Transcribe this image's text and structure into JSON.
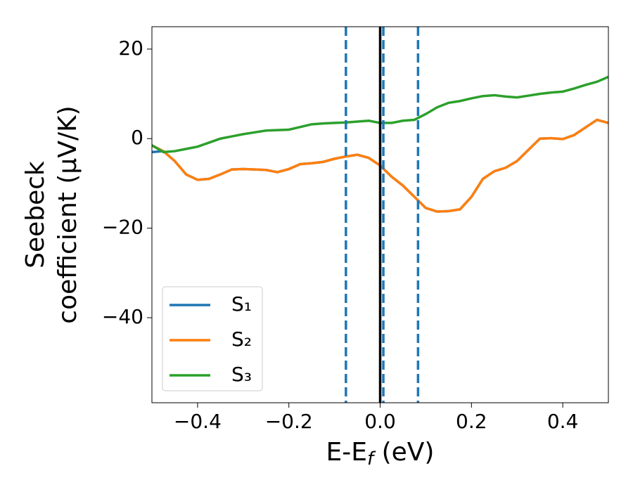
{
  "chart_data": {
    "type": "line",
    "xlabel": {
      "text": "E-E",
      "sub": "f",
      "rest": " (eV)"
    },
    "ylabel": [
      "Seebeck",
      "coefficient  (μV/K)"
    ],
    "xlim": [
      -0.5,
      0.5
    ],
    "ylim": [
      -59,
      25
    ],
    "xticks": [
      {
        "value": -0.4,
        "label": "−0.4"
      },
      {
        "value": -0.2,
        "label": "−0.2"
      },
      {
        "value": 0,
        "label": "0.0"
      },
      0.2,
      0.4
    ],
    "yticks": [
      {
        "value": -40,
        "label": "−40"
      },
      {
        "value": -20,
        "label": "−20"
      },
      0,
      20
    ],
    "legend": "lower left",
    "vlines": [
      {
        "x": -0.075,
        "color": "#1f77b4",
        "dashed": true
      },
      {
        "x": 0.007,
        "color": "#1f77b4",
        "dashed": true
      },
      {
        "x": 0.083,
        "color": "#1f77b4",
        "dashed": true
      },
      {
        "x": 0,
        "color": "#000000",
        "dashed": false
      }
    ],
    "x": [
      -0.5,
      -0.475,
      -0.45,
      -0.425,
      -0.4,
      -0.375,
      -0.35,
      -0.325,
      -0.3,
      -0.275,
      -0.25,
      -0.225,
      -0.2,
      -0.175,
      -0.15,
      -0.125,
      -0.1,
      -0.075,
      -0.05,
      -0.025,
      0,
      0.025,
      0.05,
      0.075,
      0.1,
      0.125,
      0.15,
      0.175,
      0.2,
      0.225,
      0.25,
      0.275,
      0.3,
      0.325,
      0.35,
      0.375,
      0.4,
      0.425,
      0.45,
      0.475,
      0.5
    ],
    "series": [
      {
        "name": "S₁",
        "color": "#1f77b4",
        "values": [
          -3,
          -2.8,
          -5,
          -8,
          -9.2,
          -9,
          -8,
          -6.9,
          -6.8,
          -6.9,
          -7,
          -7.5,
          -6.8,
          -5.7,
          -5.5,
          -5.2,
          -4.5,
          -4,
          -3.6,
          -4.3,
          -6,
          -8.5,
          -10.5,
          -13,
          -15.5,
          -16.3,
          -16.2,
          -15.8,
          -13,
          -9,
          -7.3,
          -6.5,
          -5,
          -2.5,
          0,
          0.1,
          -0.1,
          0.8,
          2.5,
          4.2,
          3.5
        ]
      },
      {
        "name": "S₂",
        "color": "#ff7f0e",
        "values": [
          -1.5,
          -2.8,
          -5,
          -8,
          -9.2,
          -9,
          -8,
          -6.9,
          -6.8,
          -6.9,
          -7,
          -7.5,
          -6.8,
          -5.7,
          -5.5,
          -5.2,
          -4.5,
          -4,
          -3.6,
          -4.3,
          -6,
          -8.5,
          -10.5,
          -13,
          -15.5,
          -16.3,
          -16.2,
          -15.8,
          -13,
          -9,
          -7.3,
          -6.5,
          -5,
          -2.5,
          0,
          0.1,
          -0.1,
          0.8,
          2.5,
          4.2,
          3.5
        ]
      },
      {
        "name": "S₃",
        "color": "#2ca02c",
        "values": [
          -1.5,
          -3,
          -2.8,
          -2.3,
          -1.8,
          -0.9,
          0,
          0.5,
          1,
          1.4,
          1.8,
          1.9,
          2,
          2.6,
          3.2,
          3.4,
          3.5,
          3.6,
          3.8,
          4,
          3.5,
          3.5,
          4,
          4.2,
          5.5,
          7,
          8,
          8.4,
          9,
          9.5,
          9.7,
          9.4,
          9.2,
          9.6,
          10,
          10.3,
          10.5,
          11.2,
          12,
          12.7,
          13.8
        ]
      }
    ]
  }
}
